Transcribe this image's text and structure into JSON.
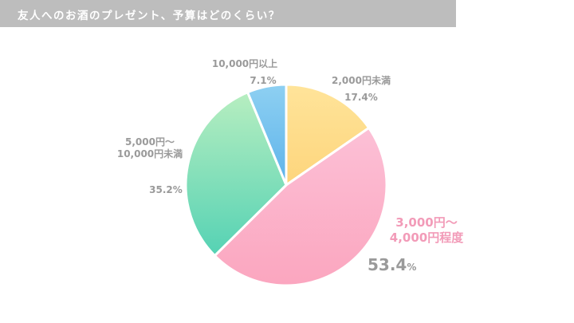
{
  "header": {
    "title": "友人へのお酒のプレゼント、予算はどのくらい？",
    "background_color": "#bdbdbd",
    "text_color": "#ffffff"
  },
  "labels": {
    "over_10000": {
      "name": "10,000円以上",
      "pct": "7.1%"
    },
    "under_2000": {
      "name": "2,000円未満",
      "pct": "17.4%"
    },
    "r5000_10000": {
      "name_line1": "5,000円〜",
      "name_line2": "10,000円未満",
      "pct": "35.2%"
    },
    "r3000_4000": {
      "name_line1": "3,000円〜",
      "name_line2": "4,000円程度",
      "pct_value": "53.4",
      "pct_unit": "%"
    }
  },
  "chart_data": {
    "type": "pie",
    "title": "友人へのお酒のプレゼント、予算はどのくらい？",
    "categories": [
      "2,000円未満",
      "3,000円〜4,000円程度",
      "5,000円〜10,000円未満",
      "10,000円以上"
    ],
    "values": [
      17.4,
      53.4,
      35.2,
      7.1
    ],
    "unit": "%",
    "start_angle": "12 o'clock, clockwise",
    "colors": [
      {
        "top": "#ffe49a",
        "bottom": "#fdd57c"
      },
      {
        "top": "#fcc0d6",
        "bottom": "#fba6bf"
      },
      {
        "top": "#b7eec0",
        "bottom": "#55d2b4"
      },
      {
        "top": "#8ed0f2",
        "bottom": "#5db3ea"
      }
    ],
    "highlight": "3,000円〜4,000円程度",
    "legend": "none (labels placed beside slices)"
  }
}
